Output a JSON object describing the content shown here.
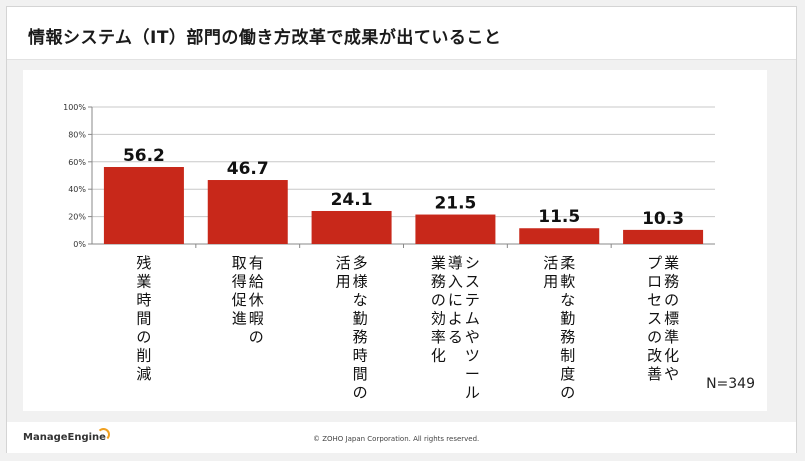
{
  "header": {
    "title": "情報システム（IT）部門の働き方改革で成果が出ていること"
  },
  "footer": {
    "logo_text": "ManageEngine",
    "copyright": "© ZOHO Japan Corporation. All rights reserved."
  },
  "chart_data": {
    "type": "bar",
    "title": "",
    "xlabel": "",
    "ylabel": "",
    "ylim": [
      0,
      100
    ],
    "y_ticks": [
      "0%",
      "20%",
      "40%",
      "60%",
      "80%",
      "100%"
    ],
    "grid": true,
    "categories": [
      "残業時間の削減",
      "有給休暇の取得促進",
      "多様な勤務時間の活用",
      "システムやツール導入による業務の効率化",
      "柔軟な勤務制度の活用",
      "業務の標準化やプロセスの改善"
    ],
    "category_label_columns": [
      [
        "残業時間の削減"
      ],
      [
        "有給休暇の",
        "取得促進"
      ],
      [
        "多様な勤務時間の",
        "活用"
      ],
      [
        "システムやツール",
        "導入による",
        "業務の効率化"
      ],
      [
        "柔軟な勤務制度の",
        "活用"
      ],
      [
        "業務の標準化や",
        "プロセスの改善"
      ]
    ],
    "values": [
      56.2,
      46.7,
      24.1,
      21.5,
      11.5,
      10.3
    ],
    "value_labels": [
      "56.2",
      "46.7",
      "24.1",
      "21.5",
      "11.5",
      "10.3"
    ],
    "annotation": "N=349",
    "colors": {
      "bar": "#c8281a",
      "grid": "#c8c8c8",
      "axis": "#888888"
    }
  }
}
